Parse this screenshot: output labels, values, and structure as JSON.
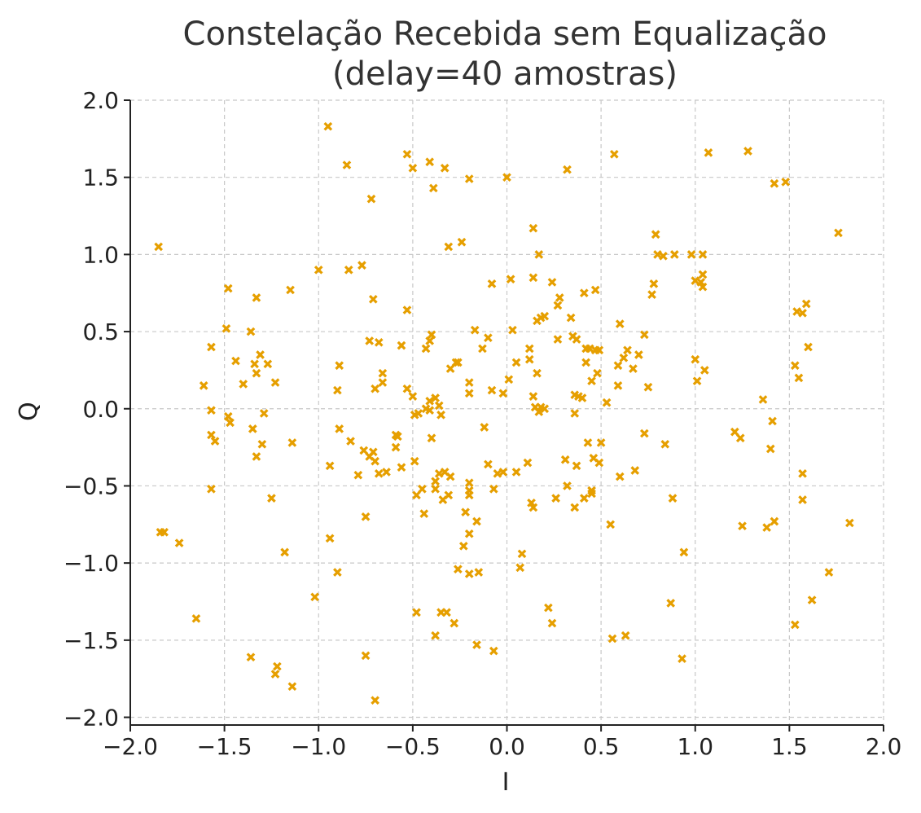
{
  "colors": {
    "marker": "#e69f00",
    "grid": "#c8c8c8",
    "text": "#333333"
  },
  "chart_data": {
    "type": "scatter",
    "title_lines": [
      "Constelação Recebida sem Equalização",
      "(delay=40 amostras)"
    ],
    "xlabel": "I",
    "ylabel": "Q",
    "xlim": [
      -2.0,
      2.0
    ],
    "ylim": [
      -2.05,
      2.0
    ],
    "xticks": [
      -2.0,
      -1.5,
      -1.0,
      -0.5,
      0.0,
      0.5,
      1.0,
      1.5,
      2.0
    ],
    "yticks": [
      -2.0,
      -1.5,
      -1.0,
      -0.5,
      0.0,
      0.5,
      1.0,
      1.5,
      2.0
    ],
    "xtick_labels": [
      "−2.0",
      "−1.5",
      "−1.0",
      "−0.5",
      "0.0",
      "0.5",
      "1.0",
      "1.5",
      "2.0"
    ],
    "ytick_labels": [
      "−2.0",
      "−1.5",
      "−1.0",
      "−0.5",
      "0.0",
      "0.5",
      "1.0",
      "1.5",
      "2.0"
    ],
    "grid": true,
    "marker": "x",
    "points": [
      [
        -0.95,
        1.83
      ],
      [
        -0.53,
        1.65
      ],
      [
        -0.5,
        1.56
      ],
      [
        -0.41,
        1.6
      ],
      [
        -0.33,
        1.56
      ],
      [
        -0.39,
        1.43
      ],
      [
        -0.2,
        1.49
      ],
      [
        0.0,
        1.5
      ],
      [
        -0.85,
        1.58
      ],
      [
        -0.72,
        1.36
      ],
      [
        0.32,
        1.55
      ],
      [
        0.57,
        1.65
      ],
      [
        1.07,
        1.66
      ],
      [
        1.28,
        1.67
      ],
      [
        1.42,
        1.46
      ],
      [
        1.48,
        1.47
      ],
      [
        1.76,
        1.14
      ],
      [
        -1.85,
        1.05
      ],
      [
        -1.0,
        0.9
      ],
      [
        -0.84,
        0.9
      ],
      [
        -0.77,
        0.93
      ],
      [
        -0.31,
        1.05
      ],
      [
        -0.24,
        1.08
      ],
      [
        0.14,
        1.17
      ],
      [
        0.17,
        1.0
      ],
      [
        0.24,
        0.82
      ],
      [
        0.02,
        0.84
      ],
      [
        -0.08,
        0.81
      ],
      [
        0.79,
        1.13
      ],
      [
        0.8,
        1.0
      ],
      [
        0.83,
        0.99
      ],
      [
        0.89,
        1.0
      ],
      [
        0.98,
        1.0
      ],
      [
        1.04,
        1.0
      ],
      [
        1.0,
        0.83
      ],
      [
        1.03,
        0.82
      ],
      [
        1.04,
        0.87
      ],
      [
        1.04,
        0.79
      ],
      [
        0.78,
        0.81
      ],
      [
        0.77,
        0.74
      ],
      [
        0.47,
        0.77
      ],
      [
        0.41,
        0.75
      ],
      [
        -1.48,
        0.78
      ],
      [
        -1.33,
        0.72
      ],
      [
        -1.15,
        0.77
      ],
      [
        -0.71,
        0.71
      ],
      [
        -0.53,
        0.64
      ],
      [
        0.14,
        0.85
      ],
      [
        0.28,
        0.72
      ],
      [
        0.27,
        0.67
      ],
      [
        0.34,
        0.59
      ],
      [
        0.16,
        0.57
      ],
      [
        0.18,
        0.59
      ],
      [
        0.2,
        0.6
      ],
      [
        1.59,
        0.68
      ],
      [
        1.54,
        0.63
      ],
      [
        1.57,
        0.62
      ],
      [
        -1.49,
        0.52
      ],
      [
        -1.36,
        0.5
      ],
      [
        -1.57,
        0.4
      ],
      [
        -1.44,
        0.31
      ],
      [
        -1.31,
        0.35
      ],
      [
        -1.34,
        0.29
      ],
      [
        -1.27,
        0.29
      ],
      [
        -1.33,
        0.23
      ],
      [
        -1.4,
        0.16
      ],
      [
        -1.23,
        0.17
      ],
      [
        -1.61,
        0.15
      ],
      [
        -0.73,
        0.44
      ],
      [
        -0.68,
        0.43
      ],
      [
        -0.56,
        0.41
      ],
      [
        -0.43,
        0.39
      ],
      [
        -0.41,
        0.44
      ],
      [
        -0.4,
        0.48
      ],
      [
        -0.27,
        0.3
      ],
      [
        -0.26,
        0.3
      ],
      [
        -0.3,
        0.26
      ],
      [
        -0.17,
        0.51
      ],
      [
        -0.13,
        0.39
      ],
      [
        -0.1,
        0.46
      ],
      [
        0.03,
        0.51
      ],
      [
        0.12,
        0.39
      ],
      [
        0.12,
        0.32
      ],
      [
        0.05,
        0.3
      ],
      [
        0.27,
        0.45
      ],
      [
        0.35,
        0.47
      ],
      [
        0.37,
        0.45
      ],
      [
        0.42,
        0.39
      ],
      [
        0.44,
        0.39
      ],
      [
        0.47,
        0.38
      ],
      [
        0.49,
        0.38
      ],
      [
        0.6,
        0.55
      ],
      [
        0.73,
        0.48
      ],
      [
        0.64,
        0.38
      ],
      [
        0.62,
        0.33
      ],
      [
        0.67,
        0.26
      ],
      [
        0.7,
        0.35
      ],
      [
        0.59,
        0.28
      ],
      [
        0.48,
        0.23
      ],
      [
        0.45,
        0.18
      ],
      [
        0.59,
        0.15
      ],
      [
        0.75,
        0.14
      ],
      [
        0.42,
        0.3
      ],
      [
        0.16,
        0.23
      ],
      [
        1.0,
        0.32
      ],
      [
        1.05,
        0.25
      ],
      [
        1.01,
        0.18
      ],
      [
        1.6,
        0.4
      ],
      [
        1.53,
        0.28
      ],
      [
        1.55,
        0.2
      ],
      [
        -0.89,
        0.28
      ],
      [
        -0.9,
        0.12
      ],
      [
        -0.66,
        0.23
      ],
      [
        -0.66,
        0.17
      ],
      [
        -0.7,
        0.13
      ],
      [
        -0.53,
        0.13
      ],
      [
        -0.5,
        0.08
      ],
      [
        -0.43,
        0.0
      ],
      [
        -0.41,
        0.05
      ],
      [
        -0.41,
        -0.01
      ],
      [
        -0.38,
        0.07
      ],
      [
        -0.36,
        0.02
      ],
      [
        -0.35,
        -0.04
      ],
      [
        -0.2,
        0.17
      ],
      [
        -0.2,
        0.1
      ],
      [
        0.01,
        0.19
      ],
      [
        -0.08,
        0.12
      ],
      [
        -0.02,
        0.1
      ],
      [
        0.14,
        0.08
      ],
      [
        0.15,
        0.01
      ],
      [
        0.17,
        -0.02
      ],
      [
        0.18,
        0.01
      ],
      [
        0.2,
        0.0
      ],
      [
        0.36,
        0.09
      ],
      [
        0.38,
        0.08
      ],
      [
        0.4,
        0.07
      ],
      [
        0.36,
        -0.03
      ],
      [
        0.53,
        0.04
      ],
      [
        -1.57,
        -0.01
      ],
      [
        -1.48,
        -0.05
      ],
      [
        -1.47,
        -0.09
      ],
      [
        -1.29,
        -0.03
      ],
      [
        -0.49,
        -0.04
      ],
      [
        -0.47,
        -0.03
      ],
      [
        -1.57,
        -0.17
      ],
      [
        -1.55,
        -0.21
      ],
      [
        -1.35,
        -0.13
      ],
      [
        -1.3,
        -0.23
      ],
      [
        -1.33,
        -0.31
      ],
      [
        -1.14,
        -0.22
      ],
      [
        -0.89,
        -0.13
      ],
      [
        -0.83,
        -0.21
      ],
      [
        -0.76,
        -0.27
      ],
      [
        -0.73,
        -0.31
      ],
      [
        -0.71,
        -0.28
      ],
      [
        -0.59,
        -0.17
      ],
      [
        -0.59,
        -0.25
      ],
      [
        -0.58,
        -0.18
      ],
      [
        -0.49,
        -0.34
      ],
      [
        -0.4,
        -0.19
      ],
      [
        -0.12,
        -0.12
      ],
      [
        -0.1,
        -0.36
      ],
      [
        -0.05,
        -0.42
      ],
      [
        -0.02,
        -0.41
      ],
      [
        0.05,
        -0.41
      ],
      [
        0.11,
        -0.35
      ],
      [
        0.31,
        -0.33
      ],
      [
        0.37,
        -0.37
      ],
      [
        0.43,
        -0.22
      ],
      [
        0.46,
        -0.32
      ],
      [
        0.5,
        -0.22
      ],
      [
        0.49,
        -0.35
      ],
      [
        0.68,
        -0.4
      ],
      [
        0.73,
        -0.16
      ],
      [
        0.84,
        -0.23
      ],
      [
        1.21,
        -0.15
      ],
      [
        1.24,
        -0.19
      ],
      [
        1.36,
        0.06
      ],
      [
        1.41,
        -0.08
      ],
      [
        1.4,
        -0.26
      ],
      [
        -0.94,
        -0.37
      ],
      [
        -0.79,
        -0.43
      ],
      [
        -0.7,
        -0.34
      ],
      [
        -0.68,
        -0.42
      ],
      [
        -0.64,
        -0.41
      ],
      [
        -0.56,
        -0.38
      ],
      [
        -0.48,
        -0.56
      ],
      [
        -0.45,
        -0.52
      ],
      [
        -0.44,
        -0.68
      ],
      [
        -0.38,
        -0.47
      ],
      [
        -0.38,
        -0.52
      ],
      [
        -0.36,
        -0.42
      ],
      [
        -0.33,
        -0.41
      ],
      [
        -0.34,
        -0.59
      ],
      [
        -0.3,
        -0.44
      ],
      [
        -0.31,
        -0.56
      ],
      [
        -0.2,
        -0.48
      ],
      [
        -0.2,
        -0.53
      ],
      [
        -0.2,
        -0.56
      ],
      [
        -0.16,
        -0.73
      ],
      [
        -0.22,
        -0.67
      ],
      [
        -0.2,
        -0.81
      ],
      [
        -0.23,
        -0.89
      ],
      [
        -0.07,
        -0.52
      ],
      [
        0.13,
        -0.61
      ],
      [
        0.14,
        -0.64
      ],
      [
        0.26,
        -0.58
      ],
      [
        0.32,
        -0.5
      ],
      [
        0.36,
        -0.64
      ],
      [
        0.41,
        -0.58
      ],
      [
        0.45,
        -0.53
      ],
      [
        0.45,
        -0.55
      ],
      [
        0.6,
        -0.44
      ],
      [
        0.88,
        -0.58
      ],
      [
        1.57,
        -0.42
      ],
      [
        1.57,
        -0.59
      ],
      [
        -1.57,
        -0.52
      ],
      [
        -1.25,
        -0.58
      ],
      [
        -0.75,
        -0.7
      ],
      [
        -1.84,
        -0.8
      ],
      [
        -1.82,
        -0.8
      ],
      [
        -1.74,
        -0.87
      ],
      [
        -1.18,
        -0.93
      ],
      [
        -0.94,
        -0.84
      ],
      [
        -0.9,
        -1.06
      ],
      [
        -0.26,
        -1.04
      ],
      [
        -0.2,
        -1.07
      ],
      [
        -0.15,
        -1.06
      ],
      [
        0.08,
        -0.94
      ],
      [
        0.07,
        -1.03
      ],
      [
        0.55,
        -0.75
      ],
      [
        0.94,
        -0.93
      ],
      [
        1.25,
        -0.76
      ],
      [
        1.38,
        -0.77
      ],
      [
        1.42,
        -0.73
      ],
      [
        1.71,
        -1.06
      ],
      [
        1.82,
        -0.74
      ],
      [
        -1.65,
        -1.36
      ],
      [
        -1.02,
        -1.22
      ],
      [
        -0.48,
        -1.32
      ],
      [
        -0.35,
        -1.32
      ],
      [
        -0.32,
        -1.32
      ],
      [
        -0.28,
        -1.39
      ],
      [
        -0.38,
        -1.47
      ],
      [
        -0.16,
        -1.53
      ],
      [
        -0.07,
        -1.57
      ],
      [
        0.22,
        -1.29
      ],
      [
        0.24,
        -1.39
      ],
      [
        0.56,
        -1.49
      ],
      [
        0.63,
        -1.47
      ],
      [
        0.87,
        -1.26
      ],
      [
        1.53,
        -1.4
      ],
      [
        1.62,
        -1.24
      ],
      [
        -1.36,
        -1.61
      ],
      [
        -1.22,
        -1.67
      ],
      [
        -1.23,
        -1.72
      ],
      [
        -1.14,
        -1.8
      ],
      [
        -0.75,
        -1.6
      ],
      [
        -0.7,
        -1.89
      ],
      [
        0.93,
        -1.62
      ]
    ]
  }
}
